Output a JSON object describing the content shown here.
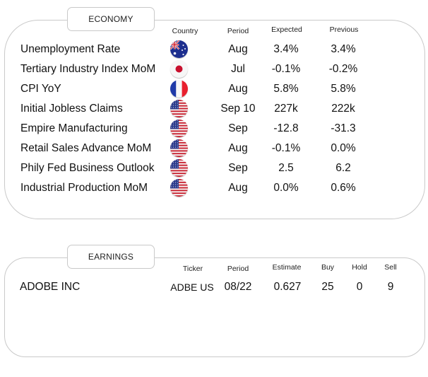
{
  "economy": {
    "title": "ECONOMY",
    "headers": {
      "country": "Country",
      "period": "Period",
      "expected": "Expected",
      "previous": "Previous"
    },
    "rows": [
      {
        "indicator": "Unemployment Rate",
        "country_icon": "australia-flag-icon",
        "period": "Aug",
        "expected": "3.4%",
        "previous": "3.4%"
      },
      {
        "indicator": "Tertiary Industry Index MoM",
        "country_icon": "japan-flag-icon",
        "period": "Jul",
        "expected": "-0.1%",
        "previous": "-0.2%"
      },
      {
        "indicator": "CPI YoY",
        "country_icon": "france-flag-icon",
        "period": "Aug",
        "expected": "5.8%",
        "previous": "5.8%"
      },
      {
        "indicator": "Initial Jobless Claims",
        "country_icon": "usa-flag-icon",
        "period": "Sep 10",
        "expected": "227k",
        "previous": "222k"
      },
      {
        "indicator": "Empire Manufacturing",
        "country_icon": "usa-flag-icon",
        "period": "Sep",
        "expected": "-12.8",
        "previous": "-31.3"
      },
      {
        "indicator": "Retail Sales Advance MoM",
        "country_icon": "usa-flag-icon",
        "period": "Aug",
        "expected": "-0.1%",
        "previous": "0.0%"
      },
      {
        "indicator": "Phily Fed Business Outlook",
        "country_icon": "usa-flag-icon",
        "period": "Sep",
        "expected": "2.5",
        "previous": "6.2"
      },
      {
        "indicator": "Industrial Production MoM",
        "country_icon": "usa-flag-icon",
        "period": "Aug",
        "expected": "0.0%",
        "previous": "0.6%"
      }
    ]
  },
  "earnings": {
    "title": "EARNINGS",
    "headers": {
      "ticker": "Ticker",
      "period": "Period",
      "estimate": "Estimate",
      "buy": "Buy",
      "hold": "Hold",
      "sell": "Sell"
    },
    "rows": [
      {
        "company": "ADOBE INC",
        "ticker": "ADBE US",
        "period": "08/22",
        "estimate": "0.627",
        "buy": "25",
        "hold": "0",
        "sell": "9"
      }
    ]
  },
  "colors": {
    "border": "#c9c9c9",
    "text": "#111111"
  }
}
